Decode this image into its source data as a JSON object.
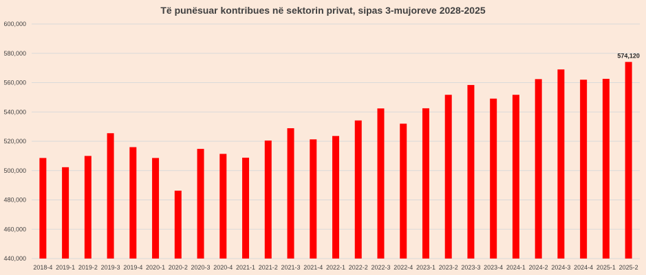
{
  "chart_data": {
    "type": "bar",
    "title": "Të punësuar kontribues në sektorin privat, sipas 3-mujoreve 2028-2025",
    "categories": [
      "2018-4",
      "2019-1",
      "2019-2",
      "2019-3",
      "2019-4",
      "2020-1",
      "2020-2",
      "2020-3",
      "2020-4",
      "2021-1",
      "2021-2",
      "2021-3",
      "2021-4",
      "2022-1",
      "2022-2",
      "2022-3",
      "2022-4",
      "2023-1",
      "2023-2",
      "2023-3",
      "2023-4",
      "2024-1",
      "2024-2",
      "2024-3",
      "2024-4",
      "2025-1",
      "2025-2"
    ],
    "values": [
      508600,
      502300,
      510000,
      525500,
      516000,
      508600,
      486300,
      514800,
      511400,
      508800,
      520500,
      528900,
      521300,
      523600,
      534200,
      542400,
      532000,
      542500,
      551700,
      558400,
      549100,
      551700,
      562400,
      569000,
      562000,
      562600,
      574120
    ],
    "ylim": [
      440000,
      600000
    ],
    "yticks": [
      "440,000",
      "460,000",
      "480,000",
      "500,000",
      "520,000",
      "540,000",
      "560,000",
      "580,000",
      "600,000"
    ],
    "ytick_values": [
      440000,
      460000,
      480000,
      500000,
      520000,
      540000,
      560000,
      580000,
      600000
    ],
    "data_labels": [
      {
        "index": 26,
        "text": "574,120"
      }
    ],
    "grid": true,
    "legend": "none",
    "bar_color": "#ff0000",
    "grid_color": "#d9d9d9",
    "background_color": "#fce9db"
  }
}
